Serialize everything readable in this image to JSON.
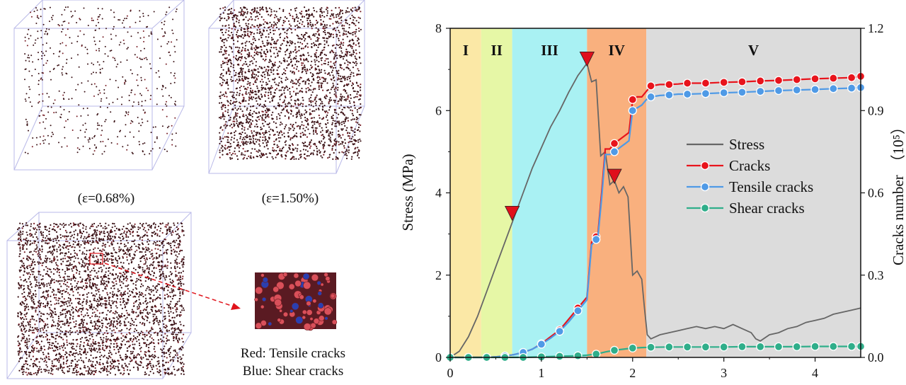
{
  "panels": {
    "strain_labels": [
      "(ε=0.68%)",
      "(ε=1.50%)"
    ],
    "legend_lines": [
      "Red: Tensile cracks",
      "Blue: Shear cracks"
    ]
  },
  "chart_data": {
    "type": "line",
    "title": "",
    "xlabel": "",
    "ylabel": "Stress (MPa)",
    "y2label": "Cracks number",
    "y2unit": "（10⁵）",
    "xlim": [
      0,
      4.5
    ],
    "ylim": [
      0,
      8
    ],
    "y2lim": [
      0,
      1.2
    ],
    "xticks": [
      "0",
      "1",
      "2",
      "3",
      "4"
    ],
    "yticks": [
      "0",
      "2",
      "4",
      "6",
      "8"
    ],
    "y2ticks": [
      "0.0",
      "0.3",
      "0.6",
      "0.9",
      "1.2"
    ],
    "grid": false,
    "legend_position": "center-right",
    "stages": [
      {
        "label": "I",
        "x0": 0,
        "x1": 0.34,
        "color": "#fbe8a6"
      },
      {
        "label": "II",
        "x0": 0.34,
        "x1": 0.68,
        "color": "#e6f7a6"
      },
      {
        "label": "III",
        "x0": 0.68,
        "x1": 1.5,
        "color": "#a9f1f3"
      },
      {
        "label": "IV",
        "x0": 1.5,
        "x1": 2.15,
        "color": "#f9b07e"
      },
      {
        "label": "V",
        "x0": 2.15,
        "x1": 4.5,
        "color": "#dcdcdc"
      }
    ],
    "series": [
      {
        "name": "Stress",
        "axis": "left",
        "color": "#666666",
        "x": [
          0,
          0.1,
          0.2,
          0.3,
          0.4,
          0.5,
          0.6,
          0.7,
          0.8,
          0.9,
          1.0,
          1.1,
          1.2,
          1.3,
          1.4,
          1.5,
          1.55,
          1.6,
          1.65,
          1.7,
          1.75,
          1.8,
          1.85,
          1.9,
          1.95,
          2.0,
          2.05,
          2.1,
          2.13,
          2.16,
          2.2,
          2.3,
          2.4,
          2.5,
          2.6,
          2.7,
          2.8,
          2.9,
          3.0,
          3.1,
          3.2,
          3.3,
          3.35,
          3.4,
          3.5,
          3.6,
          3.7,
          3.8,
          3.9,
          4.0,
          4.1,
          4.2,
          4.3,
          4.4,
          4.5
        ],
        "y": [
          0,
          0.15,
          0.5,
          1.0,
          1.6,
          2.2,
          2.8,
          3.4,
          4.0,
          4.6,
          5.1,
          5.6,
          6.0,
          6.45,
          6.85,
          7.15,
          6.7,
          6.75,
          4.9,
          5.0,
          4.2,
          4.3,
          4.0,
          4.15,
          3.9,
          2.0,
          2.1,
          1.9,
          1.2,
          0.55,
          0.45,
          0.55,
          0.6,
          0.65,
          0.7,
          0.75,
          0.7,
          0.75,
          0.7,
          0.8,
          0.7,
          0.6,
          0.45,
          0.4,
          0.55,
          0.6,
          0.7,
          0.75,
          0.85,
          0.9,
          0.95,
          1.05,
          1.1,
          1.15,
          1.2
        ]
      },
      {
        "name": "Cracks",
        "axis": "right",
        "color": "#e8141c",
        "x": [
          0,
          0.1,
          0.2,
          0.3,
          0.4,
          0.5,
          0.6,
          0.7,
          0.8,
          0.9,
          1.0,
          1.1,
          1.2,
          1.3,
          1.4,
          1.5,
          1.55,
          1.6,
          1.62,
          1.66,
          1.7,
          1.75,
          1.8,
          1.84,
          1.88,
          1.92,
          1.96,
          2.0,
          2.05,
          2.1,
          2.15,
          2.2,
          2.3,
          2.4,
          2.5,
          2.6,
          2.8,
          3.0,
          3.2,
          3.4,
          3.6,
          3.8,
          4.0,
          4.2,
          4.4,
          4.5
        ],
        "y": [
          0,
          0,
          0,
          0,
          0,
          0.002,
          0.005,
          0.01,
          0.018,
          0.03,
          0.05,
          0.075,
          0.1,
          0.14,
          0.18,
          0.22,
          0.42,
          0.44,
          0.45,
          0.6,
          0.76,
          0.76,
          0.78,
          0.79,
          0.8,
          0.81,
          0.82,
          0.94,
          0.95,
          0.95,
          0.97,
          0.99,
          0.995,
          0.995,
          0.997,
          1.0,
          1.0,
          1.003,
          1.005,
          1.008,
          1.01,
          1.013,
          1.016,
          1.018,
          1.02,
          1.025
        ]
      },
      {
        "name": "Tensile cracks",
        "axis": "right",
        "color": "#4f9ae6",
        "x": [
          0,
          0.1,
          0.2,
          0.3,
          0.4,
          0.5,
          0.6,
          0.7,
          0.8,
          0.9,
          1.0,
          1.1,
          1.2,
          1.3,
          1.4,
          1.5,
          1.55,
          1.6,
          1.62,
          1.66,
          1.7,
          1.75,
          1.8,
          1.84,
          1.88,
          1.92,
          1.96,
          2.0,
          2.05,
          2.1,
          2.15,
          2.2,
          2.3,
          2.4,
          2.5,
          2.6,
          2.8,
          3.0,
          3.2,
          3.4,
          3.6,
          3.8,
          4.0,
          4.2,
          4.4,
          4.5
        ],
        "y": [
          0,
          0,
          0,
          0,
          0,
          0.002,
          0.005,
          0.01,
          0.018,
          0.03,
          0.048,
          0.07,
          0.095,
          0.13,
          0.17,
          0.21,
          0.41,
          0.43,
          0.44,
          0.58,
          0.74,
          0.74,
          0.75,
          0.76,
          0.77,
          0.78,
          0.79,
          0.9,
          0.91,
          0.92,
          0.94,
          0.95,
          0.955,
          0.957,
          0.96,
          0.96,
          0.962,
          0.965,
          0.967,
          0.97,
          0.973,
          0.975,
          0.977,
          0.98,
          0.982,
          0.984
        ]
      },
      {
        "name": "Shear cracks",
        "axis": "right",
        "color": "#2fae8a",
        "x": [
          0,
          0.2,
          0.4,
          0.6,
          0.8,
          1.0,
          1.2,
          1.4,
          1.5,
          1.6,
          1.7,
          1.8,
          1.9,
          2.0,
          2.1,
          2.2,
          2.4,
          2.6,
          2.8,
          3.0,
          3.2,
          3.4,
          3.6,
          3.8,
          4.0,
          4.2,
          4.4,
          4.5
        ],
        "y": [
          0,
          0,
          0,
          0,
          0,
          0.002,
          0.004,
          0.006,
          0.008,
          0.012,
          0.02,
          0.026,
          0.03,
          0.034,
          0.036,
          0.037,
          0.038,
          0.038,
          0.038,
          0.038,
          0.039,
          0.039,
          0.039,
          0.039,
          0.04,
          0.04,
          0.04,
          0.04
        ]
      }
    ],
    "annotations": [
      {
        "type": "triangle",
        "x": 0.68,
        "y": 3.4
      },
      {
        "type": "triangle",
        "x": 1.5,
        "y": 7.15
      },
      {
        "type": "triangle",
        "x": 1.8,
        "y": 4.3
      }
    ]
  }
}
